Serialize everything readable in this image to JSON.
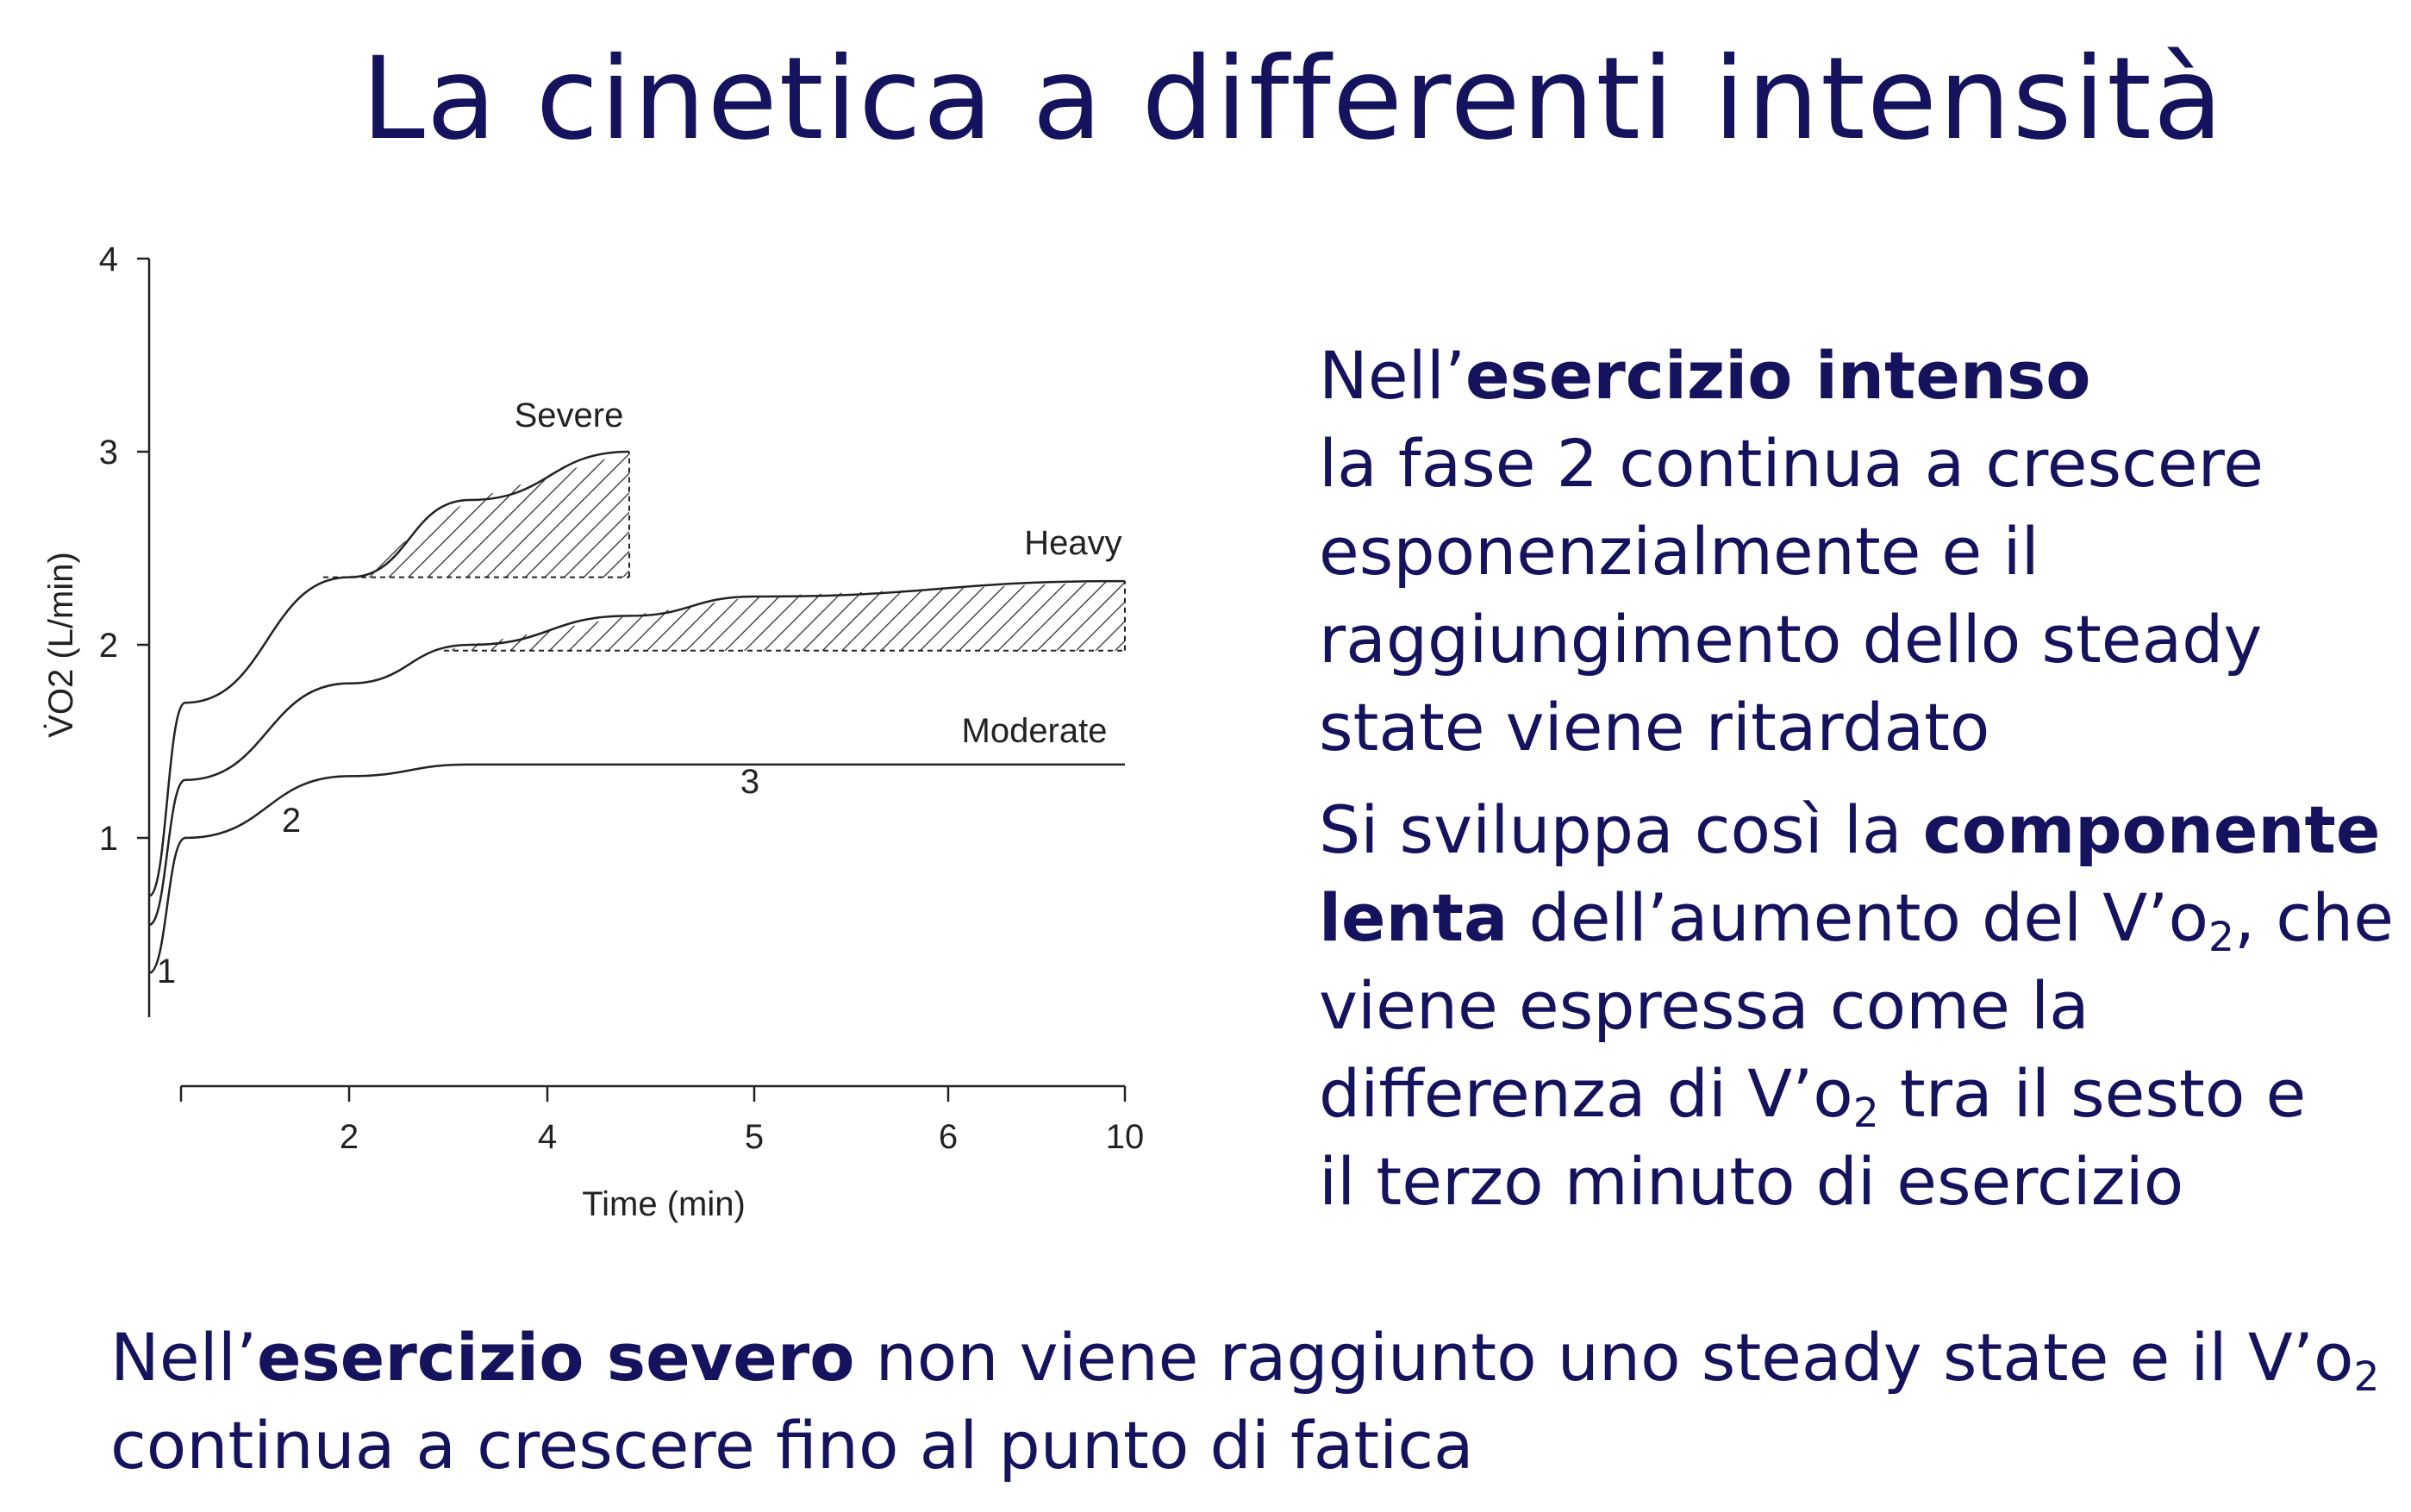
{
  "slide": {
    "title": "La cinetica a differenti intensità",
    "intense_block": {
      "line1_prefix": "Nell’",
      "line1_bold": "esercizio intenso",
      "line2": "la fase 2 continua a crescere",
      "line3": "esponenzialmente e il",
      "line4": "raggiungimento dello steady",
      "line5": "state viene ritardato"
    },
    "slow_block": {
      "line1_prefix": "Si sviluppa così la ",
      "line1_bold": "componente",
      "line2_bold": "lenta",
      "line2_text": " dell’aumento del V’o",
      "line2_sub": "2",
      "line2_suffix": ", che",
      "line3": "viene espressa come la",
      "line4_text": "differenza di V’o",
      "line4_sub": "2",
      "line4_suffix": " tra il sesto e",
      "line5": "il terzo minuto di esercizio"
    },
    "severe_block": {
      "line1_prefix": "Nell’",
      "line1_bold": "esercizio severo",
      "line1_text": " non viene raggiunto uno steady state e il V’o",
      "line1_sub": "2",
      "line2": "continua a crescere fino al punto di fatica"
    }
  },
  "chart_data": {
    "type": "line",
    "ylabel": "V̇O2 (L/min)",
    "xlabel": "Time (min)",
    "ylim": [
      0,
      4
    ],
    "y_ticks": [
      "1",
      "2",
      "3",
      "4"
    ],
    "x_ticks": [
      "2",
      "4",
      "5",
      "6",
      "10"
    ],
    "grid": false,
    "series": [
      {
        "name": "Moderate",
        "x": [
          "0",
          "1",
          "2",
          "3",
          "5",
          "10"
        ],
        "y": [
          0.3,
          1.0,
          1.32,
          1.38,
          1.38,
          1.38
        ]
      },
      {
        "name": "Heavy",
        "x": [
          "0",
          "1",
          "2",
          "3",
          "4",
          "5",
          "10"
        ],
        "y": [
          0.55,
          1.3,
          1.8,
          2.0,
          2.15,
          2.25,
          2.33
        ]
      },
      {
        "name": "Severe",
        "x": [
          "0",
          "1",
          "2",
          "3",
          "4"
        ],
        "y": [
          0.7,
          1.7,
          2.35,
          2.75,
          3.0
        ]
      }
    ],
    "annotations": [
      "1",
      "2",
      "3"
    ],
    "shaded_regions": [
      {
        "series": "Severe",
        "baseline": 2.35
      },
      {
        "series": "Heavy",
        "baseline": 1.97
      }
    ]
  }
}
